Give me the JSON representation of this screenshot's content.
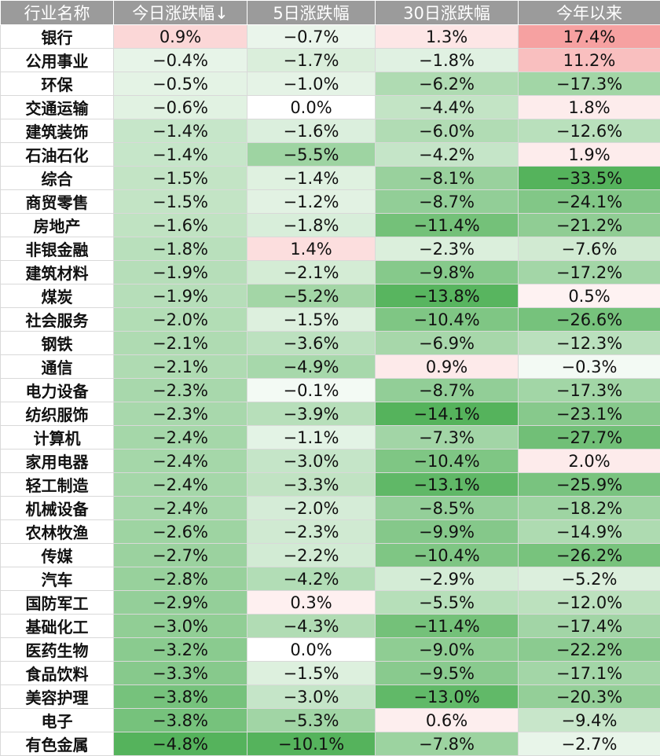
{
  "columns": [
    "行业名称",
    "今日涨跌幅↓",
    "5日涨跌幅",
    "30日涨跌幅",
    "今年以来"
  ],
  "colors": {
    "positive": "#ee5454",
    "negative": "#55b35c",
    "header_bg": "#9b9b9b"
  },
  "rows": [
    {
      "name": "银行",
      "d1": 0.9,
      "d5": -0.7,
      "d30": 1.3,
      "ytd": 17.4
    },
    {
      "name": "公用事业",
      "d1": -0.4,
      "d5": -1.7,
      "d30": -1.8,
      "ytd": 11.2
    },
    {
      "name": "环保",
      "d1": -0.5,
      "d5": -1.0,
      "d30": -6.2,
      "ytd": -17.3
    },
    {
      "name": "交通运输",
      "d1": -0.6,
      "d5": 0.0,
      "d30": -4.4,
      "ytd": 1.8
    },
    {
      "name": "建筑装饰",
      "d1": -1.4,
      "d5": -1.6,
      "d30": -6.0,
      "ytd": -12.6
    },
    {
      "name": "石油石化",
      "d1": -1.4,
      "d5": -5.5,
      "d30": -4.2,
      "ytd": 1.9
    },
    {
      "name": "综合",
      "d1": -1.5,
      "d5": -1.4,
      "d30": -8.1,
      "ytd": -33.5
    },
    {
      "name": "商贸零售",
      "d1": -1.5,
      "d5": -1.2,
      "d30": -8.7,
      "ytd": -24.1
    },
    {
      "name": "房地产",
      "d1": -1.6,
      "d5": -1.8,
      "d30": -11.4,
      "ytd": -21.2
    },
    {
      "name": "非银金融",
      "d1": -1.8,
      "d5": 1.4,
      "d30": -2.3,
      "ytd": -7.6
    },
    {
      "name": "建筑材料",
      "d1": -1.9,
      "d5": -2.1,
      "d30": -9.8,
      "ytd": -17.2
    },
    {
      "name": "煤炭",
      "d1": -1.9,
      "d5": -5.2,
      "d30": -13.8,
      "ytd": 0.5
    },
    {
      "name": "社会服务",
      "d1": -2.0,
      "d5": -1.5,
      "d30": -10.4,
      "ytd": -26.6
    },
    {
      "name": "钢铁",
      "d1": -2.1,
      "d5": -3.6,
      "d30": -6.9,
      "ytd": -12.3
    },
    {
      "name": "通信",
      "d1": -2.1,
      "d5": -4.9,
      "d30": 0.9,
      "ytd": -0.3
    },
    {
      "name": "电力设备",
      "d1": -2.3,
      "d5": -0.1,
      "d30": -8.7,
      "ytd": -17.3
    },
    {
      "name": "纺织服饰",
      "d1": -2.3,
      "d5": -3.9,
      "d30": -14.1,
      "ytd": -23.1
    },
    {
      "name": "计算机",
      "d1": -2.4,
      "d5": -1.1,
      "d30": -7.3,
      "ytd": -27.7
    },
    {
      "name": "家用电器",
      "d1": -2.4,
      "d5": -3.0,
      "d30": -10.4,
      "ytd": 2.0
    },
    {
      "name": "轻工制造",
      "d1": -2.4,
      "d5": -3.3,
      "d30": -13.1,
      "ytd": -25.9
    },
    {
      "name": "机械设备",
      "d1": -2.4,
      "d5": -2.0,
      "d30": -8.5,
      "ytd": -18.2
    },
    {
      "name": "农林牧渔",
      "d1": -2.6,
      "d5": -2.3,
      "d30": -9.9,
      "ytd": -14.9
    },
    {
      "name": "传媒",
      "d1": -2.7,
      "d5": -2.2,
      "d30": -10.4,
      "ytd": -26.2
    },
    {
      "name": "汽车",
      "d1": -2.8,
      "d5": -4.2,
      "d30": -2.9,
      "ytd": -5.2
    },
    {
      "name": "国防军工",
      "d1": -2.9,
      "d5": 0.3,
      "d30": -5.5,
      "ytd": -12.0
    },
    {
      "name": "基础化工",
      "d1": -3.0,
      "d5": -4.3,
      "d30": -11.4,
      "ytd": -17.4
    },
    {
      "name": "医药生物",
      "d1": -3.2,
      "d5": 0.0,
      "d30": -9.0,
      "ytd": -22.2
    },
    {
      "name": "食品饮料",
      "d1": -3.3,
      "d5": -1.5,
      "d30": -9.5,
      "ytd": -17.1
    },
    {
      "name": "美容护理",
      "d1": -3.8,
      "d5": -3.0,
      "d30": -13.0,
      "ytd": -20.3
    },
    {
      "name": "电子",
      "d1": -3.8,
      "d5": -5.3,
      "d30": 0.6,
      "ytd": -9.4
    },
    {
      "name": "有色金属",
      "d1": -4.8,
      "d5": -10.1,
      "d30": -7.8,
      "ytd": -2.7
    }
  ]
}
